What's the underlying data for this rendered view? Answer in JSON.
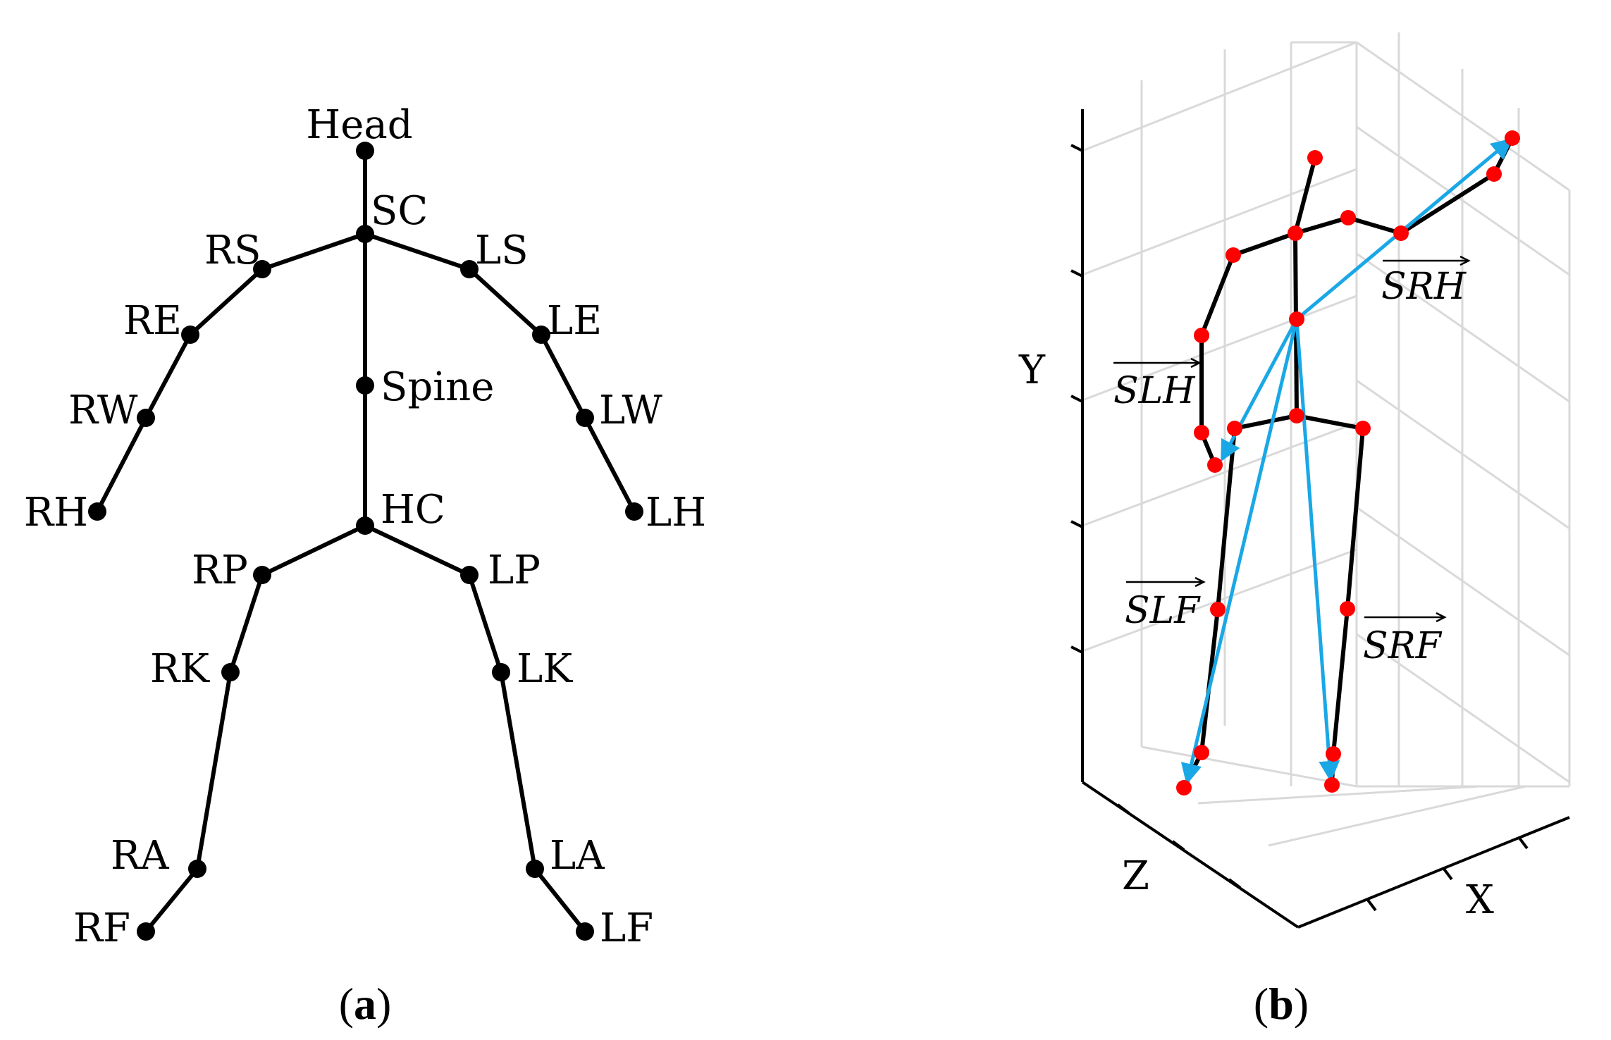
{
  "panel_a": {
    "caption_open": "(",
    "caption_letter": "a",
    "caption_close": ")",
    "labels": {
      "head": "Head",
      "sc": "SC",
      "rs": "RS",
      "ls": "LS",
      "re": "RE",
      "le": "LE",
      "spine": "Spine",
      "rw": "RW",
      "lw": "LW",
      "rh": "RH",
      "lh": "LH",
      "hc": "HC",
      "rp": "RP",
      "lp": "LP",
      "rk": "RK",
      "lk": "LK",
      "ra": "RA",
      "la": "LA",
      "rf": "RF",
      "lf": "LF"
    }
  },
  "panel_b": {
    "caption_open": "(",
    "caption_letter": "b",
    "caption_close": ")",
    "axis_y": "Y",
    "axis_z": "Z",
    "axis_x": "X",
    "vectors": {
      "srh": "SRH",
      "slh": "SLH",
      "slf": "SLF",
      "srf": "SRF"
    },
    "colors": {
      "joint": "#ff0000",
      "vector": "#1aa7e6",
      "bone": "#000000",
      "grid": "#d9d9d9"
    }
  }
}
